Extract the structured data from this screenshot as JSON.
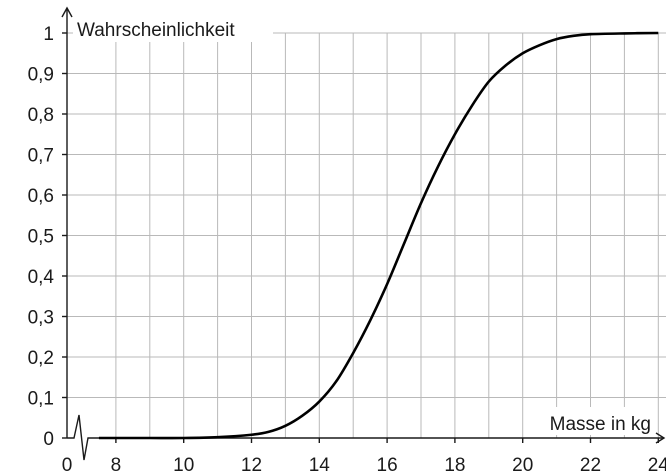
{
  "chart_data": {
    "type": "line",
    "xlabel": "Masse in kg",
    "ylabel": "Wahrscheinlichkeit",
    "x_axis_break": true,
    "x_break_from": 0,
    "x_break_to": 7,
    "xlim": [
      7,
      25
    ],
    "ylim": [
      0,
      1
    ],
    "x_ticks": [
      8,
      10,
      12,
      14,
      16,
      18,
      20,
      22,
      24
    ],
    "x_tick_labels": [
      "0",
      "8",
      "10",
      "12",
      "14",
      "16",
      "18",
      "20",
      "22",
      "24"
    ],
    "y_ticks": [
      0,
      0.1,
      0.2,
      0.3,
      0.4,
      0.5,
      0.6,
      0.7,
      0.8,
      0.9,
      1
    ],
    "y_tick_labels": [
      "0",
      "0,1",
      "0,2",
      "0,3",
      "0,4",
      "0,5",
      "0,6",
      "0,7",
      "0,8",
      "0,9",
      "1"
    ],
    "x_grid_step": 1,
    "y_grid_step": 0.1,
    "grid": true,
    "series": [
      {
        "color": "#000000",
        "x": [
          7.5,
          8,
          9,
          10,
          11,
          12,
          12.5,
          13,
          13.5,
          14,
          14.5,
          15,
          15.5,
          16,
          16.5,
          17,
          17.5,
          18,
          18.5,
          19,
          19.5,
          20,
          20.5,
          21,
          21.5,
          22,
          23,
          24,
          25
        ],
        "y": [
          0,
          0,
          0,
          0,
          0.002,
          0.008,
          0.015,
          0.03,
          0.055,
          0.09,
          0.14,
          0.21,
          0.29,
          0.38,
          0.48,
          0.58,
          0.67,
          0.75,
          0.82,
          0.88,
          0.92,
          0.95,
          0.97,
          0.985,
          0.993,
          0.997,
          0.999,
          1,
          1
        ]
      }
    ]
  }
}
